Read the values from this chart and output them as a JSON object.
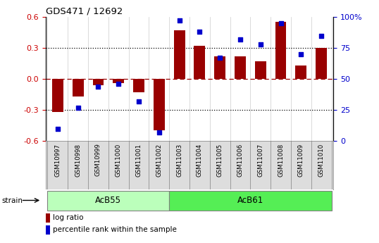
{
  "title": "GDS471 / 12692",
  "samples": [
    "GSM10997",
    "GSM10998",
    "GSM10999",
    "GSM11000",
    "GSM11001",
    "GSM11002",
    "GSM11003",
    "GSM11004",
    "GSM11005",
    "GSM11006",
    "GSM11007",
    "GSM11008",
    "GSM11009",
    "GSM11010"
  ],
  "log_ratio": [
    -0.32,
    -0.17,
    -0.06,
    -0.04,
    -0.13,
    -0.5,
    0.47,
    0.32,
    0.22,
    0.22,
    0.17,
    0.55,
    0.13,
    0.3
  ],
  "percentile_rank": [
    10,
    27,
    44,
    46,
    32,
    7,
    97,
    88,
    67,
    82,
    78,
    95,
    70,
    85
  ],
  "bar_color": "#990000",
  "scatter_color": "#0000CC",
  "ylim_left": [
    -0.6,
    0.6
  ],
  "ylim_right": [
    0,
    100
  ],
  "yticks_left": [
    -0.6,
    -0.3,
    0.0,
    0.3,
    0.6
  ],
  "yticks_right": [
    0,
    25,
    50,
    75,
    100
  ],
  "ytick_labels_right": [
    "0",
    "25",
    "50",
    "75",
    "100%"
  ],
  "ylabel_color_left": "#CC0000",
  "ylabel_color_right": "#0000CC",
  "legend_items": [
    {
      "label": "log ratio",
      "color": "#990000"
    },
    {
      "label": "percentile rank within the sample",
      "color": "#0000CC"
    }
  ],
  "acb55_color": "#BBFFBB",
  "acb61_color": "#55EE55",
  "acb55_samples": 6,
  "acb61_samples": 8
}
